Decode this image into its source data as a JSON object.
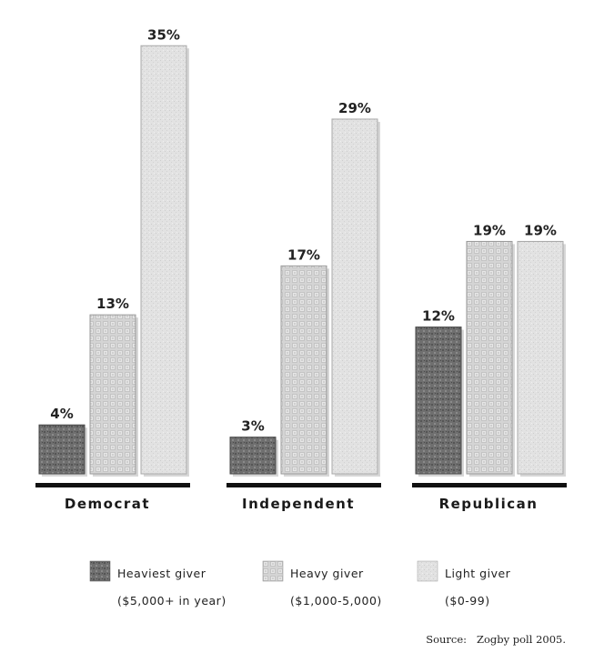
{
  "chart_data": {
    "type": "bar",
    "categories": [
      "Democrat",
      "Independent",
      "Republican"
    ],
    "series": [
      {
        "name": "Heaviest giver",
        "detail": "($5,000+ in year)",
        "values": [
          4,
          3,
          12
        ]
      },
      {
        "name": "Heavy giver",
        "detail": "($1,000-5,000)",
        "values": [
          13,
          17,
          19
        ]
      },
      {
        "name": "Light giver",
        "detail": "($0-99)",
        "values": [
          35,
          29,
          19
        ]
      }
    ],
    "value_suffix": "%",
    "ylim": [
      0,
      35
    ],
    "source": "Source:   Zogby poll 2005.",
    "colors": {
      "heaviest": "#6f6f6f",
      "heavy": "#d2d2d2",
      "light": "#e2e2e2",
      "axis": "#111111"
    }
  }
}
